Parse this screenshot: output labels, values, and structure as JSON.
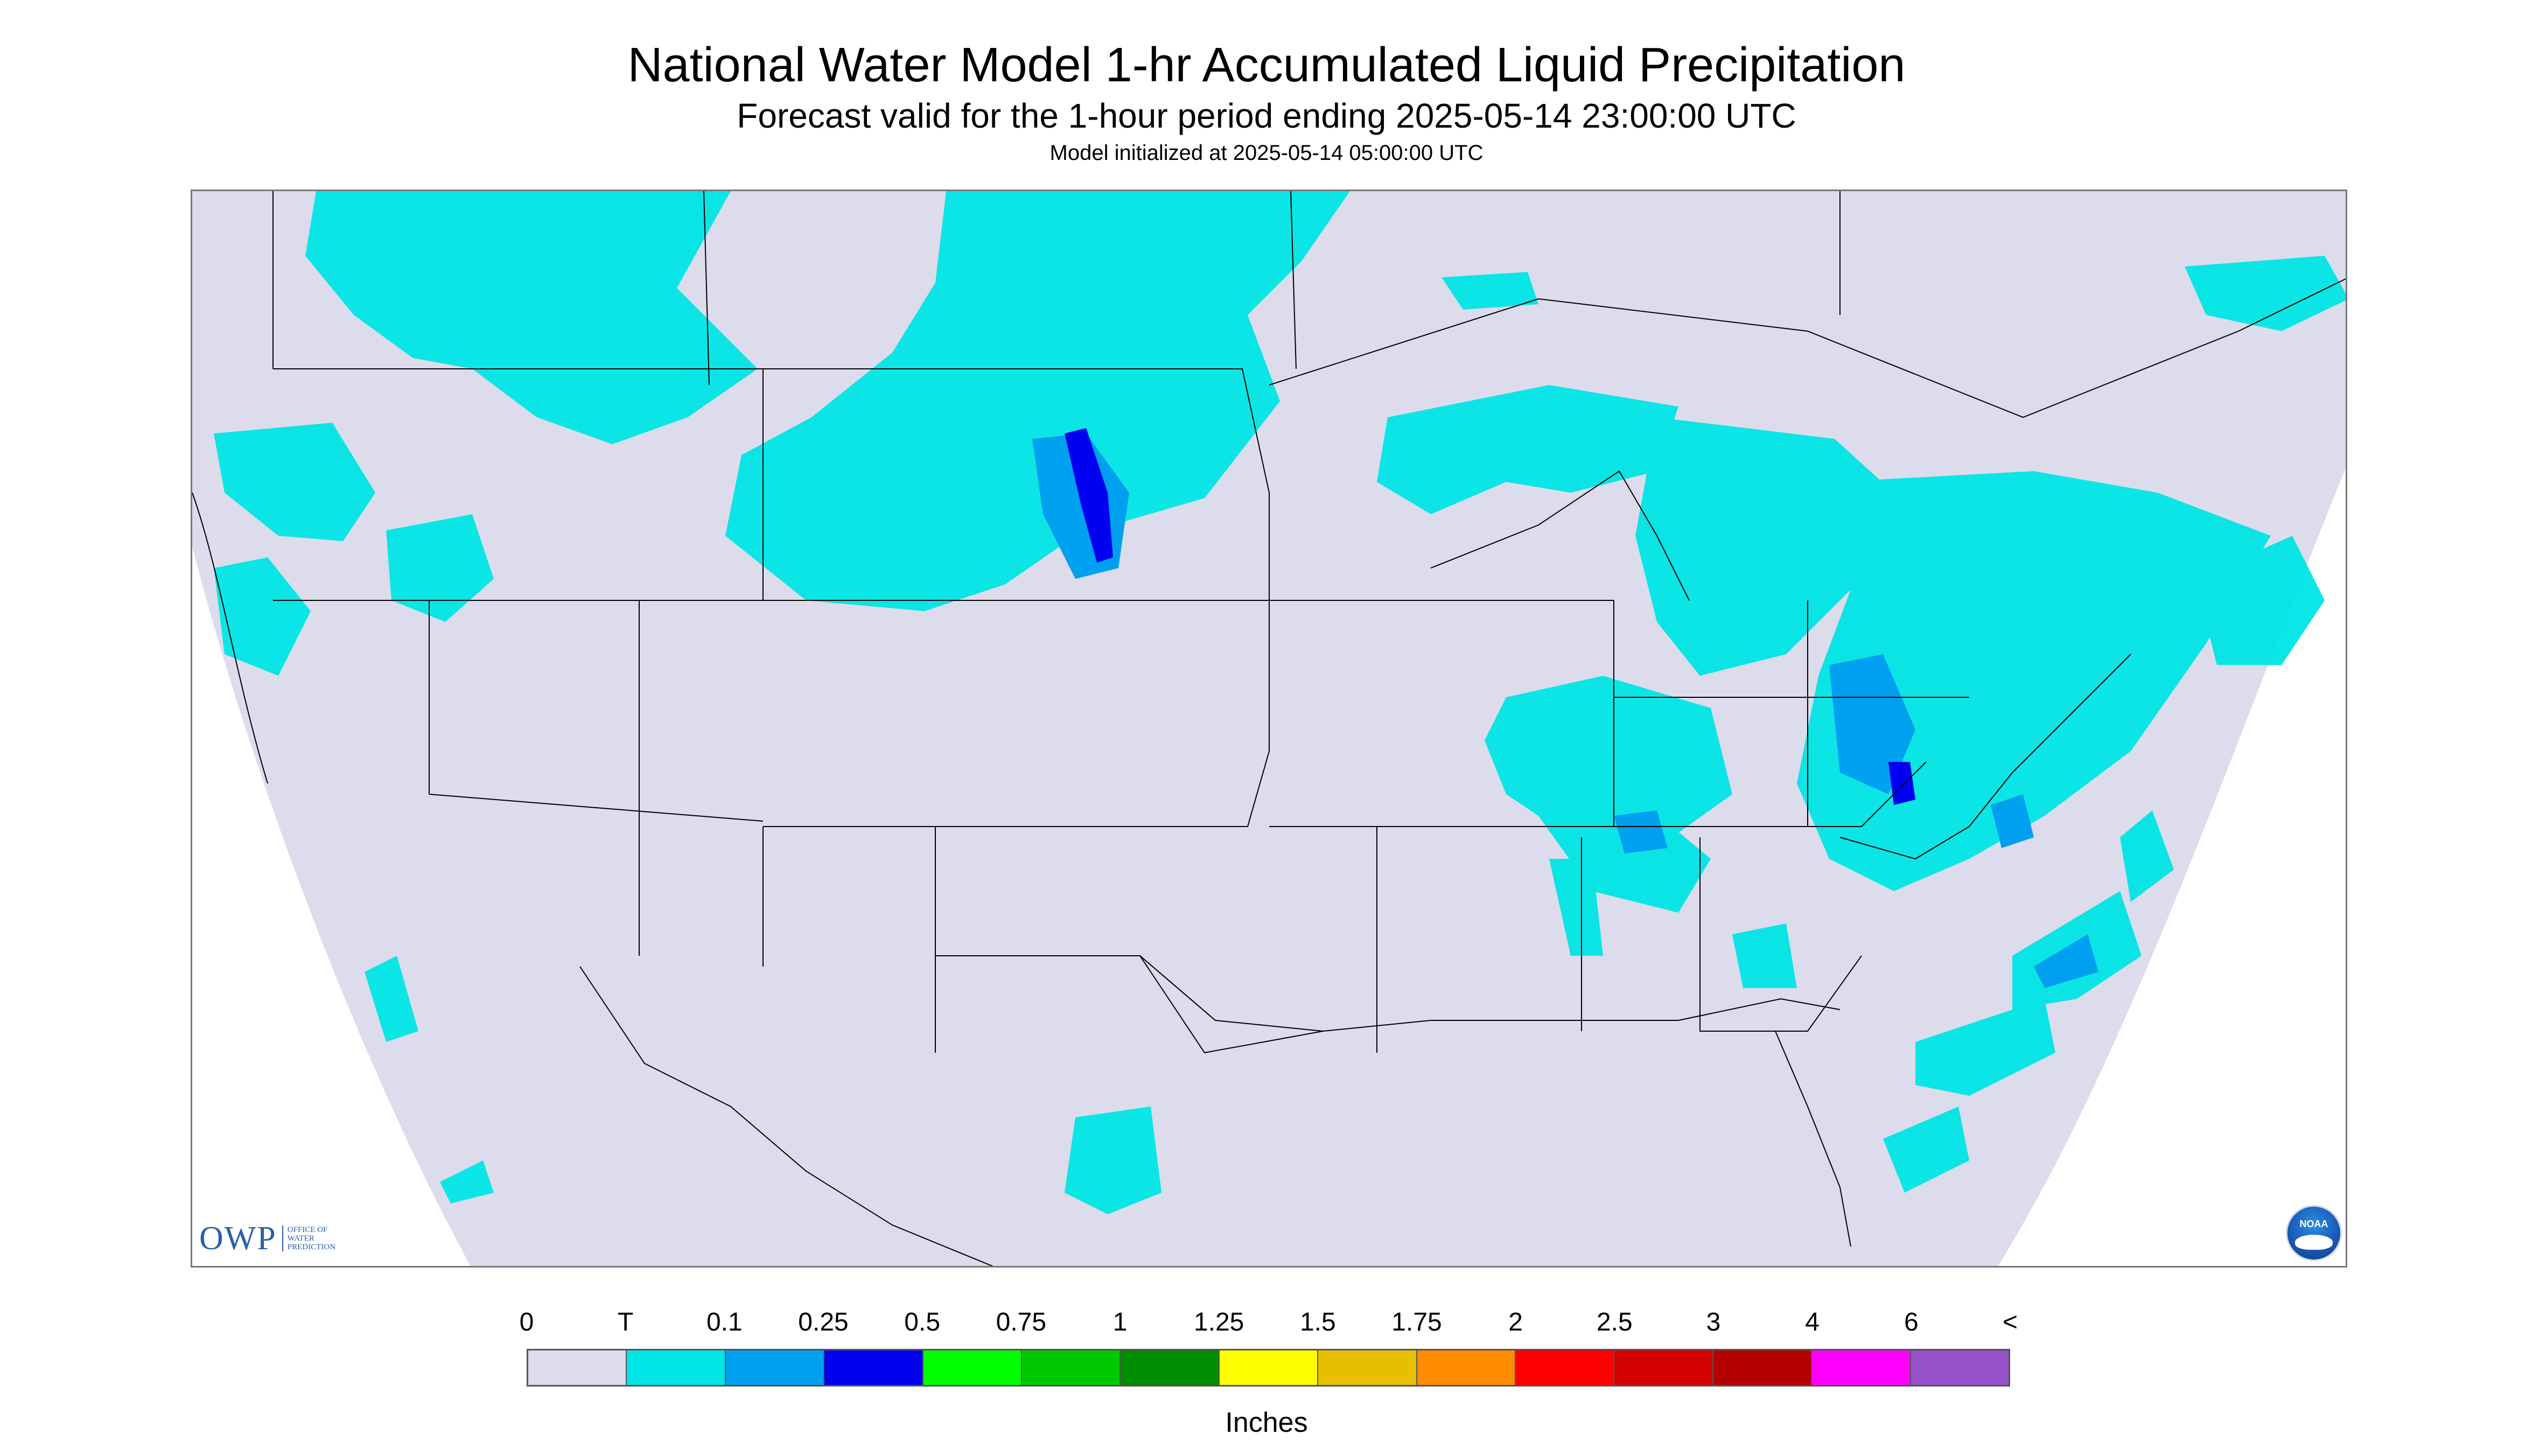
{
  "title": "National Water Model 1-hr Accumulated Liquid Precipitation",
  "subtitle": "Forecast valid for the 1-hour period ending 2025-05-14 23:00:00 UTC",
  "init_line": "Model initialized at 2025-05-14 05:00:00 UTC",
  "logos": {
    "owp_mark": "OWP",
    "owp_text": "OFFICE OF\nWATER\nPREDICTION",
    "noaa_text": "NOAA"
  },
  "map_colors": {
    "background": "#dcdcec",
    "outside_domain": "#ffffff",
    "precip_trace": "#00e5e5",
    "precip_01": "#00a0f0",
    "precip_025": "#0000f0",
    "boundary": "#000000"
  },
  "legend": {
    "ticks": [
      "0",
      "T",
      "0.1",
      "0.25",
      "0.5",
      "0.75",
      "1",
      "1.25",
      "1.5",
      "1.75",
      "2",
      "2.5",
      "3",
      "4",
      "6",
      "<"
    ],
    "colors": [
      "#dcdcec",
      "#00e5e5",
      "#00a0f0",
      "#0000f0",
      "#00ff00",
      "#00c800",
      "#008c00",
      "#ffff00",
      "#e6c000",
      "#ff8c00",
      "#ff0000",
      "#d20000",
      "#b40000",
      "#ff00ff",
      "#9650c8"
    ],
    "units": "Inches"
  }
}
